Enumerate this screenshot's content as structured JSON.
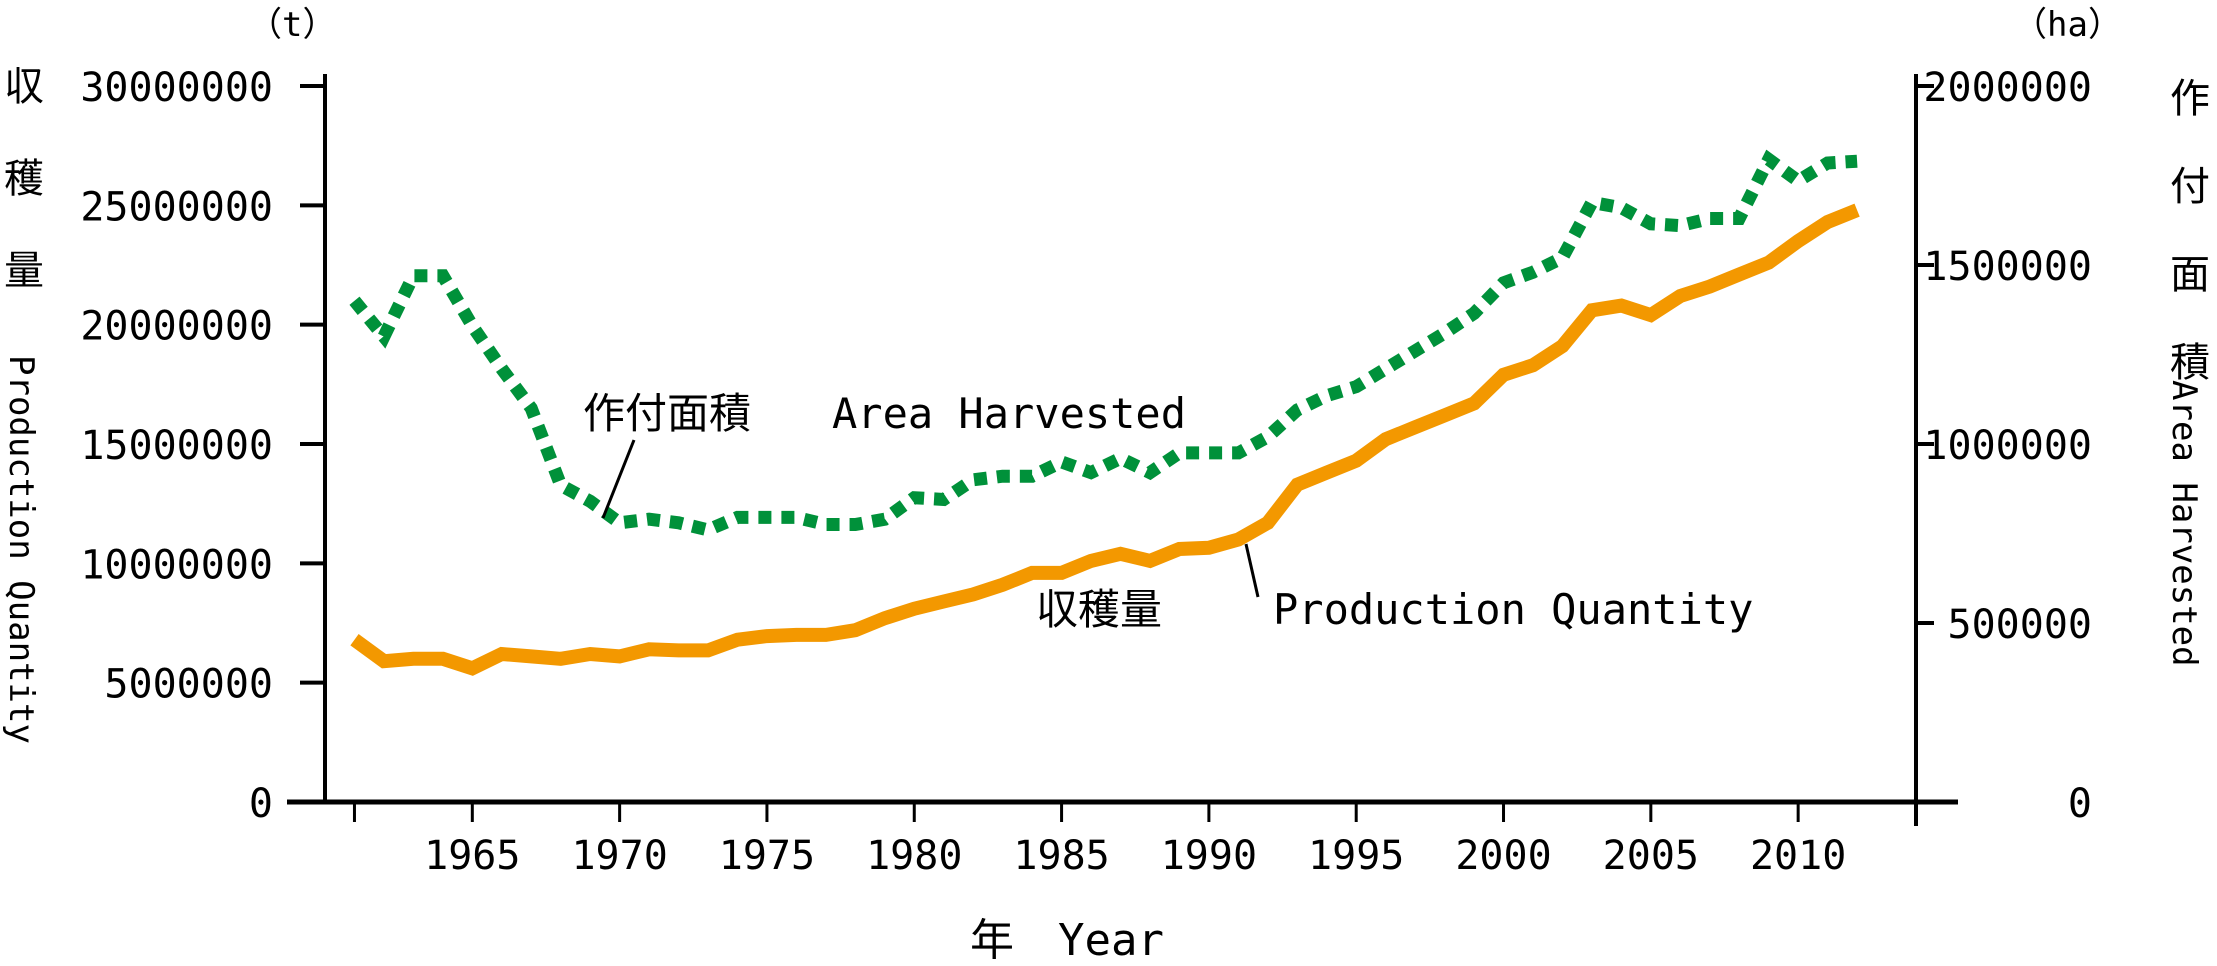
{
  "chart_data": {
    "type": "line",
    "title": "",
    "xlabel": "年　Year",
    "ylabel_left": {
      "jp": "収穫量",
      "en": "Production Quantity",
      "unit": "（t）"
    },
    "ylabel_right": {
      "jp": "作付面積",
      "en": "Area Harvested",
      "unit": "（ha）"
    },
    "xlim": [
      1960,
      2014
    ],
    "ylim_left": [
      0,
      30000000
    ],
    "ylim_right": [
      0,
      2000000
    ],
    "x_ticks": [
      1965,
      1970,
      1975,
      1980,
      1985,
      1990,
      1995,
      2000,
      2005,
      2010
    ],
    "y_ticks_left": [
      "0",
      "5000000",
      "10000000",
      "15000000",
      "20000000",
      "25000000",
      "30000000"
    ],
    "y_ticks_right": [
      "0",
      "500000",
      "1000000",
      "1500000",
      "2000000"
    ],
    "grid": false,
    "x": [
      1961,
      1962,
      1963,
      1964,
      1965,
      1966,
      1967,
      1968,
      1969,
      1970,
      1971,
      1972,
      1973,
      1974,
      1975,
      1976,
      1977,
      1978,
      1979,
      1980,
      1981,
      1982,
      1983,
      1984,
      1985,
      1986,
      1987,
      1988,
      1989,
      1990,
      1991,
      1992,
      1993,
      1994,
      1995,
      1996,
      1997,
      1998,
      1999,
      2000,
      2001,
      2002,
      2003,
      2004,
      2005,
      2006,
      2007,
      2008,
      2009,
      2010,
      2011,
      2012
    ],
    "series": [
      {
        "name": "Production Quantity",
        "label_jp": "収穫量",
        "axis": "left",
        "style": "solid",
        "color": "#F39800",
        "values": [
          6800000,
          5900000,
          6000000,
          6000000,
          5600000,
          6200000,
          6100000,
          6000000,
          6200000,
          6100000,
          6400000,
          6350000,
          6350000,
          6800000,
          6950000,
          7000000,
          7000000,
          7200000,
          7700000,
          8100000,
          8400000,
          8700000,
          9100000,
          9600000,
          9600000,
          10100000,
          10400000,
          10100000,
          10600000,
          10650000,
          11000000,
          11700000,
          13300000,
          13800000,
          14300000,
          15200000,
          15700000,
          16200000,
          16700000,
          17900000,
          18300000,
          19100000,
          20600000,
          20800000,
          20400000,
          21200000,
          21600000,
          22100000,
          22600000,
          23500000,
          24300000,
          24800000
        ]
      },
      {
        "name": "Area Harvested",
        "label_jp": "作付面積",
        "axis": "right",
        "style": "dotted",
        "color": "#00913A",
        "values": [
          1400000,
          1300000,
          1470000,
          1470000,
          1330000,
          1210000,
          1100000,
          885000,
          840000,
          780000,
          790000,
          780000,
          760000,
          795000,
          795000,
          795000,
          775000,
          775000,
          790000,
          850000,
          845000,
          900000,
          910000,
          910000,
          950000,
          920000,
          960000,
          920000,
          975000,
          975000,
          975000,
          1020000,
          1095000,
          1135000,
          1160000,
          1210000,
          1260000,
          1310000,
          1365000,
          1450000,
          1480000,
          1520000,
          1675000,
          1660000,
          1615000,
          1610000,
          1630000,
          1630000,
          1795000,
          1735000,
          1785000,
          1790000
        ]
      }
    ],
    "annotations": [
      {
        "text_jp": "作付面積",
        "text_en": "Area Harvested",
        "points_to": "Area Harvested",
        "year": 1970
      },
      {
        "text_jp": "収穫量",
        "text_en": "Production Quantity",
        "points_to": "Production Quantity",
        "year": 1991
      }
    ]
  }
}
